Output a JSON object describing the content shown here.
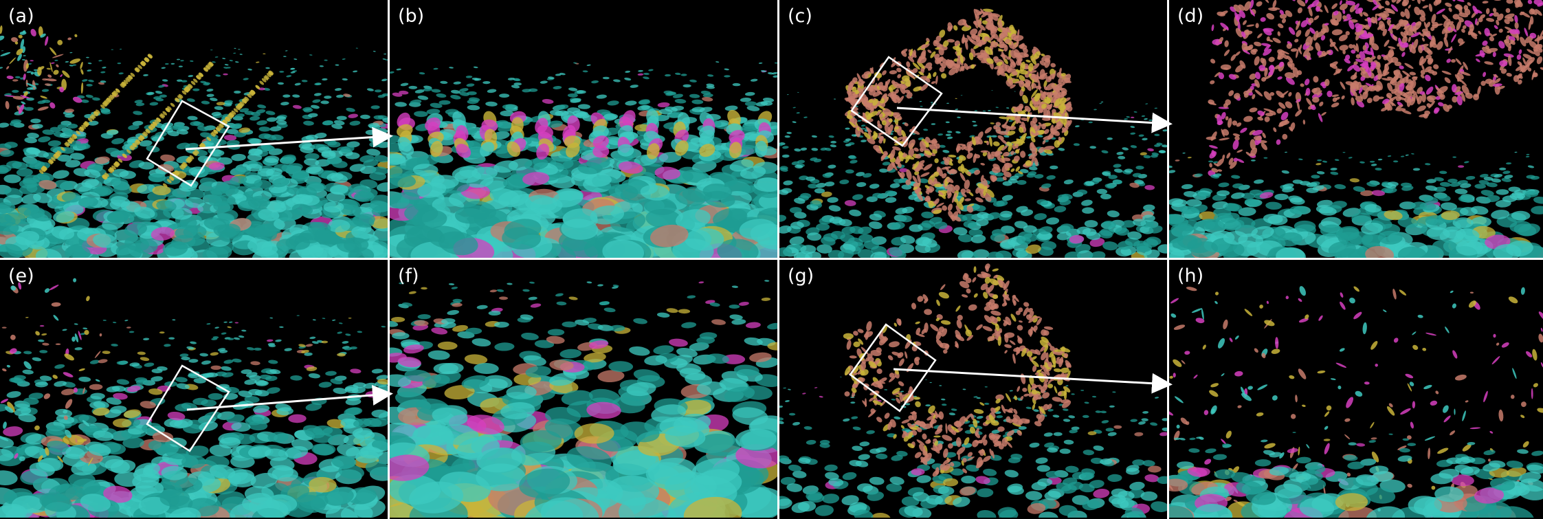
{
  "panels": [
    {
      "id": "a",
      "label": "(a)",
      "type": "floor-overview"
    },
    {
      "id": "b",
      "label": "(b)",
      "type": "floor-zoom"
    },
    {
      "id": "c",
      "label": "(c)",
      "type": "room-overview"
    },
    {
      "id": "d",
      "label": "(d)",
      "type": "room-zoom"
    },
    {
      "id": "e",
      "label": "(e)",
      "type": "floor-overview-sparse"
    },
    {
      "id": "f",
      "label": "(f)",
      "type": "floor-zoom-sparse"
    },
    {
      "id": "g",
      "label": "(g)",
      "type": "room-overview-sparse"
    },
    {
      "id": "h",
      "label": "(h)",
      "type": "room-zoom-sparse"
    }
  ],
  "colors": {
    "background": "#000000",
    "separator": "#ffffff",
    "teal": "#1f9c93",
    "teal_light": "#3ec9c0",
    "magenta": "#d63fbf",
    "yellow": "#c9b43a",
    "salmon": "#c77b6b",
    "annotation": "#ffffff"
  }
}
